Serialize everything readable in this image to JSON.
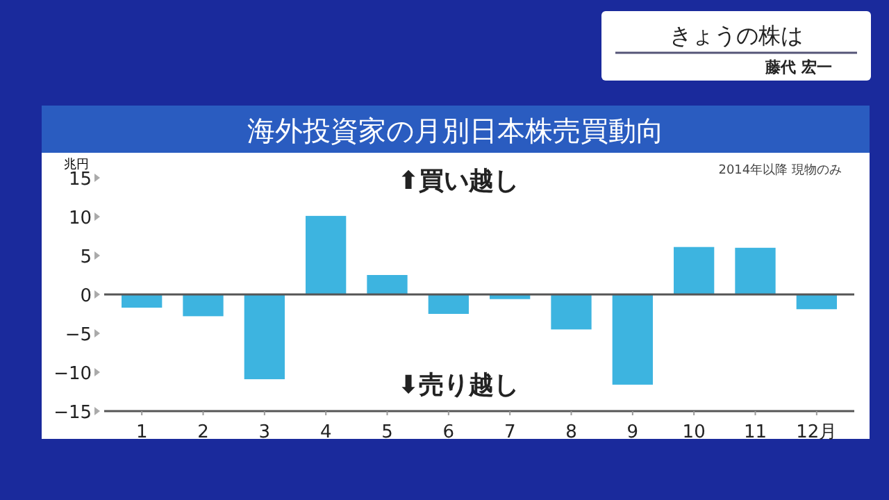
{
  "chart_data": {
    "type": "bar",
    "title": "海外投資家の月別日本株売買動向",
    "ylabel": "兆円",
    "categories": [
      "1",
      "2",
      "3",
      "4",
      "5",
      "6",
      "7",
      "8",
      "9",
      "10",
      "11",
      "12月"
    ],
    "values": [
      -1.7,
      -2.8,
      -10.9,
      10.1,
      2.5,
      -2.5,
      -0.6,
      -4.5,
      -11.6,
      6.1,
      6.0,
      -1.9
    ],
    "color": "#3db4e0",
    "ylim": [
      -15,
      15
    ],
    "yticks": [
      -15,
      -10,
      -5,
      0,
      5,
      10,
      15
    ],
    "annotations": [
      "⬆買い越し",
      "⬇売り越し",
      "2014年以降 現物のみ",
      "きょうの株は",
      "藤代 宏一"
    ]
  }
}
